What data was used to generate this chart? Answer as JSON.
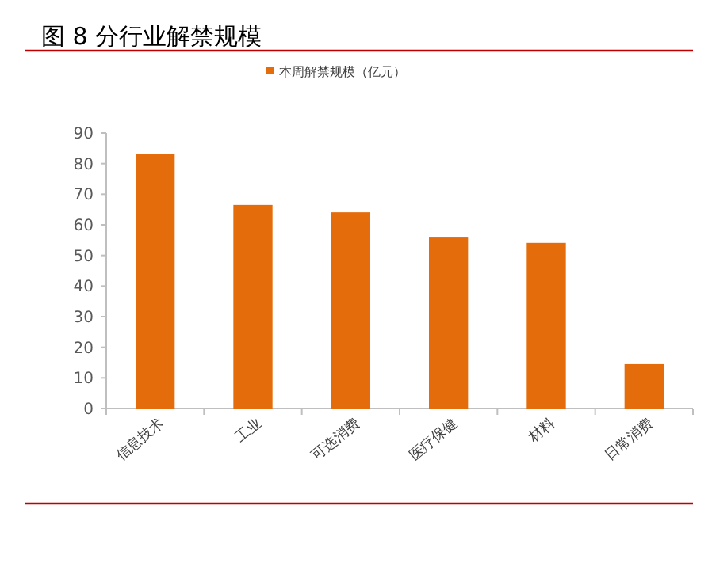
{
  "chart_data": {
    "type": "bar",
    "title": "图 8 分行业解禁规模",
    "categories": [
      "信息技术",
      "工业",
      "可选消费",
      "医疗保健",
      "材料",
      "日常消费"
    ],
    "series": [
      {
        "name": "本周解禁规模（亿元）",
        "color": "#e46c0a",
        "values": [
          83.1,
          66.5,
          64.1,
          56.1,
          54.1,
          14.5
        ]
      }
    ],
    "ylim": [
      0,
      90
    ],
    "yticks": [
      0,
      10,
      20,
      30,
      40,
      50,
      60,
      70,
      80,
      90
    ],
    "grid": false,
    "legend": "top"
  }
}
